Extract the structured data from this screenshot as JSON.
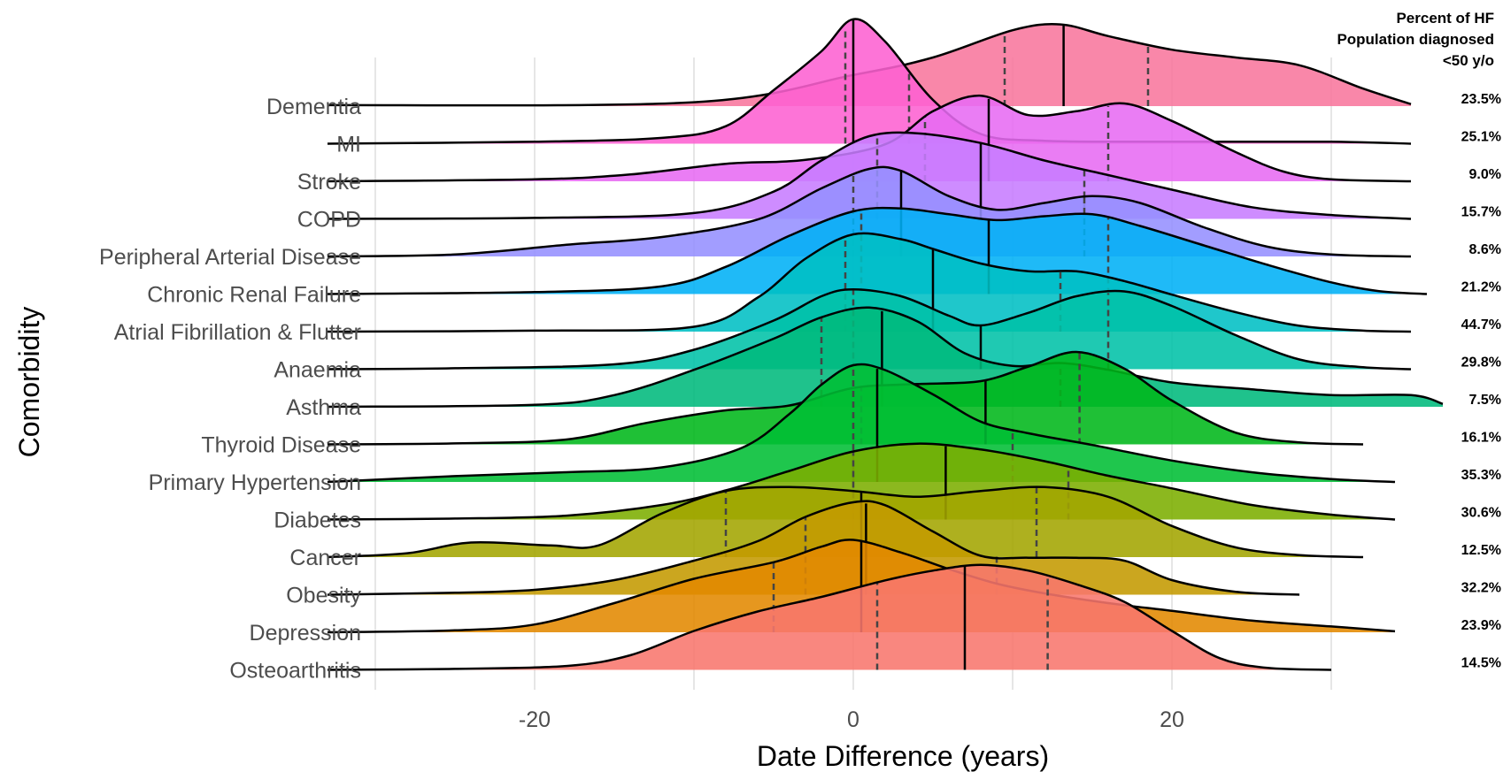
{
  "chart_data": {
    "type": "ridgeline",
    "xlabel": "Date Difference (years)",
    "ylabel": "Comorbidity",
    "xlim": [
      -30,
      37
    ],
    "x_ticks": [
      -20,
      0,
      20
    ],
    "x_tick_labels": [
      "-20",
      "0",
      "20"
    ],
    "x_gridlines": [
      -30,
      -20,
      -10,
      0,
      10,
      20,
      30
    ],
    "grid": true,
    "side_column_header": [
      "Percent of HF",
      "Population diagnosed",
      "<50 y/o"
    ],
    "categories": [
      {
        "name": "Dementia",
        "percent": "23.5%",
        "color": "#f8769d",
        "q1": 9.5,
        "median": 13.2,
        "q3": 18.5,
        "density": [
          [
            -33,
            0.01
          ],
          [
            -10,
            0.04
          ],
          [
            0,
            0.32
          ],
          [
            5,
            0.5
          ],
          [
            10,
            0.78
          ],
          [
            13,
            0.84
          ],
          [
            16,
            0.72
          ],
          [
            20,
            0.58
          ],
          [
            24,
            0.5
          ],
          [
            28,
            0.42
          ],
          [
            32,
            0.18
          ],
          [
            35,
            0.02
          ]
        ]
      },
      {
        "name": "MI",
        "percent": "25.1%",
        "color": "#fd61d1",
        "q1": -0.5,
        "median": 0,
        "q3": 3.5,
        "density": [
          [
            -33,
            0
          ],
          [
            -20,
            0.02
          ],
          [
            -12,
            0.06
          ],
          [
            -8,
            0.18
          ],
          [
            -5,
            0.55
          ],
          [
            -2,
            0.95
          ],
          [
            0,
            1.28
          ],
          [
            2,
            1.05
          ],
          [
            5,
            0.45
          ],
          [
            8,
            0.1
          ],
          [
            12,
            0.03
          ],
          [
            20,
            0.02
          ],
          [
            30,
            0.02
          ],
          [
            35,
            0
          ]
        ]
      },
      {
        "name": "Stroke",
        "percent": "9.0%",
        "color": "#e76bf3",
        "q1": 4.5,
        "median": 8.5,
        "q3": 16,
        "density": [
          [
            -33,
            0
          ],
          [
            -20,
            0.02
          ],
          [
            -14,
            0.07
          ],
          [
            -8,
            0.18
          ],
          [
            -3,
            0.22
          ],
          [
            2,
            0.38
          ],
          [
            5,
            0.72
          ],
          [
            8,
            0.88
          ],
          [
            11,
            0.68
          ],
          [
            14,
            0.72
          ],
          [
            17,
            0.8
          ],
          [
            20,
            0.62
          ],
          [
            24,
            0.3
          ],
          [
            27,
            0.1
          ],
          [
            30,
            0.02
          ],
          [
            35,
            0
          ]
        ]
      },
      {
        "name": "COPD",
        "percent": "15.7%",
        "color": "#c77cff",
        "q1": 1.5,
        "median": 8,
        "q3": 14.5,
        "density": [
          [
            -33,
            0
          ],
          [
            -20,
            0.01
          ],
          [
            -10,
            0.06
          ],
          [
            -5,
            0.28
          ],
          [
            -2,
            0.6
          ],
          [
            1,
            0.85
          ],
          [
            4,
            0.88
          ],
          [
            8,
            0.78
          ],
          [
            12,
            0.6
          ],
          [
            16,
            0.45
          ],
          [
            20,
            0.3
          ],
          [
            25,
            0.12
          ],
          [
            30,
            0.04
          ],
          [
            35,
            0
          ]
        ]
      },
      {
        "name": "Peripheral Arterial Disease",
        "percent": "8.6%",
        "color": "#9590ff",
        "q1": 0,
        "median": 3,
        "q3": 14.5,
        "density": [
          [
            -33,
            0
          ],
          [
            -25,
            0.02
          ],
          [
            -18,
            0.12
          ],
          [
            -12,
            0.2
          ],
          [
            -6,
            0.38
          ],
          [
            -2,
            0.7
          ],
          [
            1,
            0.9
          ],
          [
            3,
            0.88
          ],
          [
            6,
            0.62
          ],
          [
            9,
            0.48
          ],
          [
            12,
            0.55
          ],
          [
            15,
            0.62
          ],
          [
            18,
            0.55
          ],
          [
            22,
            0.3
          ],
          [
            26,
            0.1
          ],
          [
            30,
            0.02
          ],
          [
            35,
            0
          ]
        ]
      },
      {
        "name": "Chronic Renal Failure",
        "percent": "21.2%",
        "color": "#00b0f6",
        "q1": 0.5,
        "median": 8.5,
        "q3": 16,
        "density": [
          [
            -33,
            0
          ],
          [
            -20,
            0.02
          ],
          [
            -12,
            0.08
          ],
          [
            -8,
            0.28
          ],
          [
            -4,
            0.6
          ],
          [
            0,
            0.85
          ],
          [
            3,
            0.88
          ],
          [
            6,
            0.82
          ],
          [
            9,
            0.76
          ],
          [
            12,
            0.8
          ],
          [
            15,
            0.82
          ],
          [
            18,
            0.7
          ],
          [
            22,
            0.5
          ],
          [
            26,
            0.3
          ],
          [
            30,
            0.12
          ],
          [
            33,
            0.03
          ],
          [
            36,
            0
          ]
        ]
      },
      {
        "name": "Atrial Fibrillation & Flutter",
        "percent": "44.7%",
        "color": "#00bfc4",
        "q1": -0.5,
        "median": 5,
        "q3": 13,
        "density": [
          [
            -33,
            0
          ],
          [
            -20,
            0.01
          ],
          [
            -10,
            0.05
          ],
          [
            -6,
            0.35
          ],
          [
            -3,
            0.75
          ],
          [
            0,
            1.0
          ],
          [
            3,
            0.95
          ],
          [
            5,
            0.85
          ],
          [
            8,
            0.7
          ],
          [
            11,
            0.62
          ],
          [
            14,
            0.62
          ],
          [
            17,
            0.52
          ],
          [
            20,
            0.38
          ],
          [
            24,
            0.2
          ],
          [
            28,
            0.06
          ],
          [
            32,
            0.01
          ],
          [
            35,
            0
          ]
        ]
      },
      {
        "name": "Anaemia",
        "percent": "29.8%",
        "color": "#00c1a7",
        "q1": 0,
        "median": 8,
        "q3": 16,
        "density": [
          [
            -33,
            0
          ],
          [
            -25,
            0.01
          ],
          [
            -15,
            0.05
          ],
          [
            -10,
            0.2
          ],
          [
            -5,
            0.5
          ],
          [
            -2,
            0.75
          ],
          [
            0,
            0.82
          ],
          [
            3,
            0.75
          ],
          [
            6,
            0.55
          ],
          [
            8,
            0.45
          ],
          [
            11,
            0.58
          ],
          [
            14,
            0.75
          ],
          [
            17,
            0.8
          ],
          [
            20,
            0.65
          ],
          [
            24,
            0.35
          ],
          [
            28,
            0.1
          ],
          [
            32,
            0.02
          ],
          [
            35,
            0
          ]
        ]
      },
      {
        "name": "Asthma",
        "percent": "7.5%",
        "color": "#00ba7c",
        "q1": -2,
        "median": 1.8,
        "q3": 13,
        "density": [
          [
            -33,
            0
          ],
          [
            -20,
            0.02
          ],
          [
            -15,
            0.12
          ],
          [
            -10,
            0.38
          ],
          [
            -5,
            0.7
          ],
          [
            -2,
            0.92
          ],
          [
            1,
            1.02
          ],
          [
            4,
            0.88
          ],
          [
            7,
            0.55
          ],
          [
            10,
            0.42
          ],
          [
            13,
            0.45
          ],
          [
            16,
            0.38
          ],
          [
            20,
            0.25
          ],
          [
            25,
            0.18
          ],
          [
            30,
            0.12
          ],
          [
            35,
            0.12
          ],
          [
            37,
            0.03
          ]
        ]
      },
      {
        "name": "Thyroid Disease",
        "percent": "16.1%",
        "color": "#00b71a",
        "q1": 0.5,
        "median": 8.3,
        "q3": 14.2,
        "density": [
          [
            -33,
            0
          ],
          [
            -25,
            0.01
          ],
          [
            -18,
            0.05
          ],
          [
            -13,
            0.22
          ],
          [
            -8,
            0.35
          ],
          [
            -4,
            0.4
          ],
          [
            0,
            0.58
          ],
          [
            4,
            0.62
          ],
          [
            8,
            0.65
          ],
          [
            11,
            0.8
          ],
          [
            14,
            0.95
          ],
          [
            17,
            0.78
          ],
          [
            20,
            0.45
          ],
          [
            24,
            0.12
          ],
          [
            28,
            0.02
          ],
          [
            32,
            0
          ]
        ]
      },
      {
        "name": "Primary Hypertension",
        "percent": "35.3%",
        "color": "#00be34",
        "q1": 0,
        "median": 1.5,
        "q3": 10,
        "density": [
          [
            -33,
            0
          ],
          [
            -25,
            0.06
          ],
          [
            -18,
            0.1
          ],
          [
            -12,
            0.15
          ],
          [
            -7,
            0.35
          ],
          [
            -4,
            0.7
          ],
          [
            -2,
            1.0
          ],
          [
            0,
            1.2
          ],
          [
            2,
            1.15
          ],
          [
            5,
            0.9
          ],
          [
            8,
            0.62
          ],
          [
            11,
            0.5
          ],
          [
            15,
            0.38
          ],
          [
            20,
            0.22
          ],
          [
            25,
            0.1
          ],
          [
            30,
            0.03
          ],
          [
            34,
            0
          ]
        ]
      },
      {
        "name": "Diabetes",
        "percent": "30.6%",
        "color": "#7cae00",
        "q1": 0,
        "median": 5.8,
        "q3": 13.5,
        "density": [
          [
            -33,
            0
          ],
          [
            -25,
            0.01
          ],
          [
            -18,
            0.04
          ],
          [
            -12,
            0.15
          ],
          [
            -8,
            0.3
          ],
          [
            -4,
            0.5
          ],
          [
            0,
            0.7
          ],
          [
            4,
            0.78
          ],
          [
            8,
            0.72
          ],
          [
            12,
            0.6
          ],
          [
            16,
            0.45
          ],
          [
            20,
            0.32
          ],
          [
            25,
            0.15
          ],
          [
            30,
            0.05
          ],
          [
            34,
            0
          ]
        ]
      },
      {
        "name": "Cancer",
        "percent": "12.5%",
        "color": "#a3a500",
        "q1": -8,
        "median": 0.5,
        "q3": 11.5,
        "density": [
          [
            -33,
            0
          ],
          [
            -28,
            0.04
          ],
          [
            -24,
            0.15
          ],
          [
            -19,
            0.12
          ],
          [
            -16,
            0.12
          ],
          [
            -12,
            0.45
          ],
          [
            -8,
            0.68
          ],
          [
            -4,
            0.72
          ],
          [
            0,
            0.68
          ],
          [
            4,
            0.62
          ],
          [
            8,
            0.68
          ],
          [
            12,
            0.72
          ],
          [
            16,
            0.62
          ],
          [
            20,
            0.32
          ],
          [
            24,
            0.1
          ],
          [
            28,
            0.02
          ],
          [
            32,
            0
          ]
        ]
      },
      {
        "name": "Obesity",
        "percent": "32.2%",
        "color": "#c49a00",
        "q1": -3,
        "median": 0.8,
        "q3": 9,
        "density": [
          [
            -33,
            0
          ],
          [
            -25,
            0.02
          ],
          [
            -20,
            0.05
          ],
          [
            -15,
            0.15
          ],
          [
            -10,
            0.35
          ],
          [
            -6,
            0.55
          ],
          [
            -3,
            0.8
          ],
          [
            0,
            0.95
          ],
          [
            2,
            0.92
          ],
          [
            5,
            0.65
          ],
          [
            8,
            0.4
          ],
          [
            11,
            0.38
          ],
          [
            14,
            0.38
          ],
          [
            17,
            0.35
          ],
          [
            20,
            0.15
          ],
          [
            24,
            0.03
          ],
          [
            28,
            0
          ]
        ]
      },
      {
        "name": "Depression",
        "percent": "23.9%",
        "color": "#e38900",
        "q1": -5,
        "median": 0.5,
        "q3": 7,
        "density": [
          [
            -33,
            0
          ],
          [
            -25,
            0.02
          ],
          [
            -20,
            0.08
          ],
          [
            -15,
            0.3
          ],
          [
            -10,
            0.55
          ],
          [
            -5,
            0.72
          ],
          [
            -2,
            0.88
          ],
          [
            0,
            0.95
          ],
          [
            3,
            0.82
          ],
          [
            6,
            0.65
          ],
          [
            9,
            0.5
          ],
          [
            12,
            0.4
          ],
          [
            16,
            0.3
          ],
          [
            20,
            0.22
          ],
          [
            25,
            0.12
          ],
          [
            30,
            0.06
          ],
          [
            34,
            0.01
          ]
        ]
      },
      {
        "name": "Osteoarthritis",
        "percent": "14.5%",
        "color": "#f8766d",
        "q1": 1.5,
        "median": 7,
        "q3": 12.2,
        "density": [
          [
            -33,
            0
          ],
          [
            -25,
            0.01
          ],
          [
            -18,
            0.04
          ],
          [
            -14,
            0.15
          ],
          [
            -10,
            0.4
          ],
          [
            -6,
            0.6
          ],
          [
            -2,
            0.75
          ],
          [
            2,
            0.92
          ],
          [
            5,
            1.02
          ],
          [
            8,
            1.08
          ],
          [
            11,
            1.02
          ],
          [
            14,
            0.88
          ],
          [
            17,
            0.7
          ],
          [
            20,
            0.4
          ],
          [
            23,
            0.12
          ],
          [
            26,
            0.02
          ],
          [
            30,
            0
          ]
        ]
      }
    ]
  }
}
